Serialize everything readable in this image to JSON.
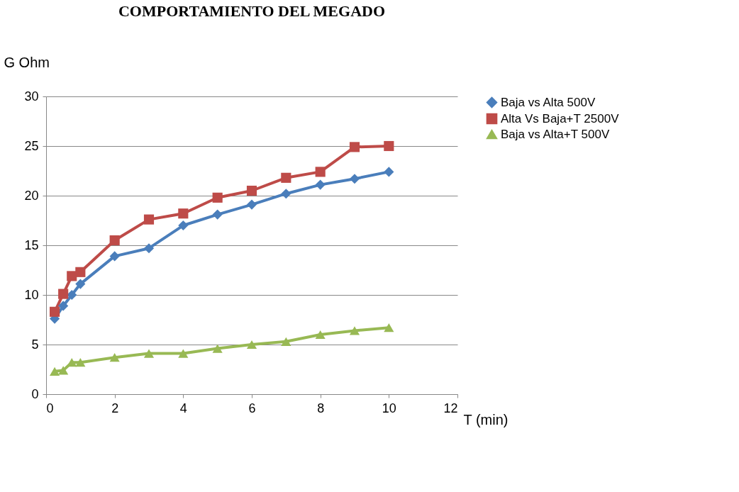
{
  "chart_data": {
    "type": "line",
    "title": "COMPORTAMIENTO DEL MEGADO",
    "xlabel": "T (min)",
    "ylabel": "G  Ohm",
    "x": [
      0.25,
      0.5,
      0.75,
      1,
      2,
      3,
      4,
      5,
      6,
      7,
      8,
      9,
      10
    ],
    "series": [
      {
        "name": "Baja vs Alta 500V",
        "color": "#4a7ebb",
        "marker": "diamond",
        "values": [
          7.6,
          8.9,
          10.0,
          11.1,
          13.9,
          14.7,
          17.0,
          18.1,
          19.1,
          20.2,
          21.1,
          21.7,
          22.4
        ]
      },
      {
        "name": "Alta Vs Baja+T 2500V",
        "color": "#be4b48",
        "marker": "square",
        "values": [
          8.3,
          10.1,
          11.9,
          12.3,
          15.5,
          17.6,
          18.2,
          19.8,
          20.5,
          21.8,
          22.4,
          24.9,
          25.0
        ]
      },
      {
        "name": "Baja vs Alta+T 500V",
        "color": "#98b954",
        "marker": "triangle",
        "values": [
          2.3,
          2.4,
          3.2,
          3.2,
          3.7,
          4.1,
          4.1,
          4.6,
          5.0,
          5.3,
          6.0,
          6.4,
          6.7
        ]
      }
    ],
    "xlim": [
      0,
      12
    ],
    "xticks": [
      0,
      2,
      4,
      6,
      8,
      10,
      12
    ],
    "ylim": [
      0,
      30
    ],
    "yticks": [
      0,
      5,
      10,
      15,
      20,
      25,
      30
    ],
    "grid": "y",
    "legend": "right",
    "line_style": "solid"
  }
}
